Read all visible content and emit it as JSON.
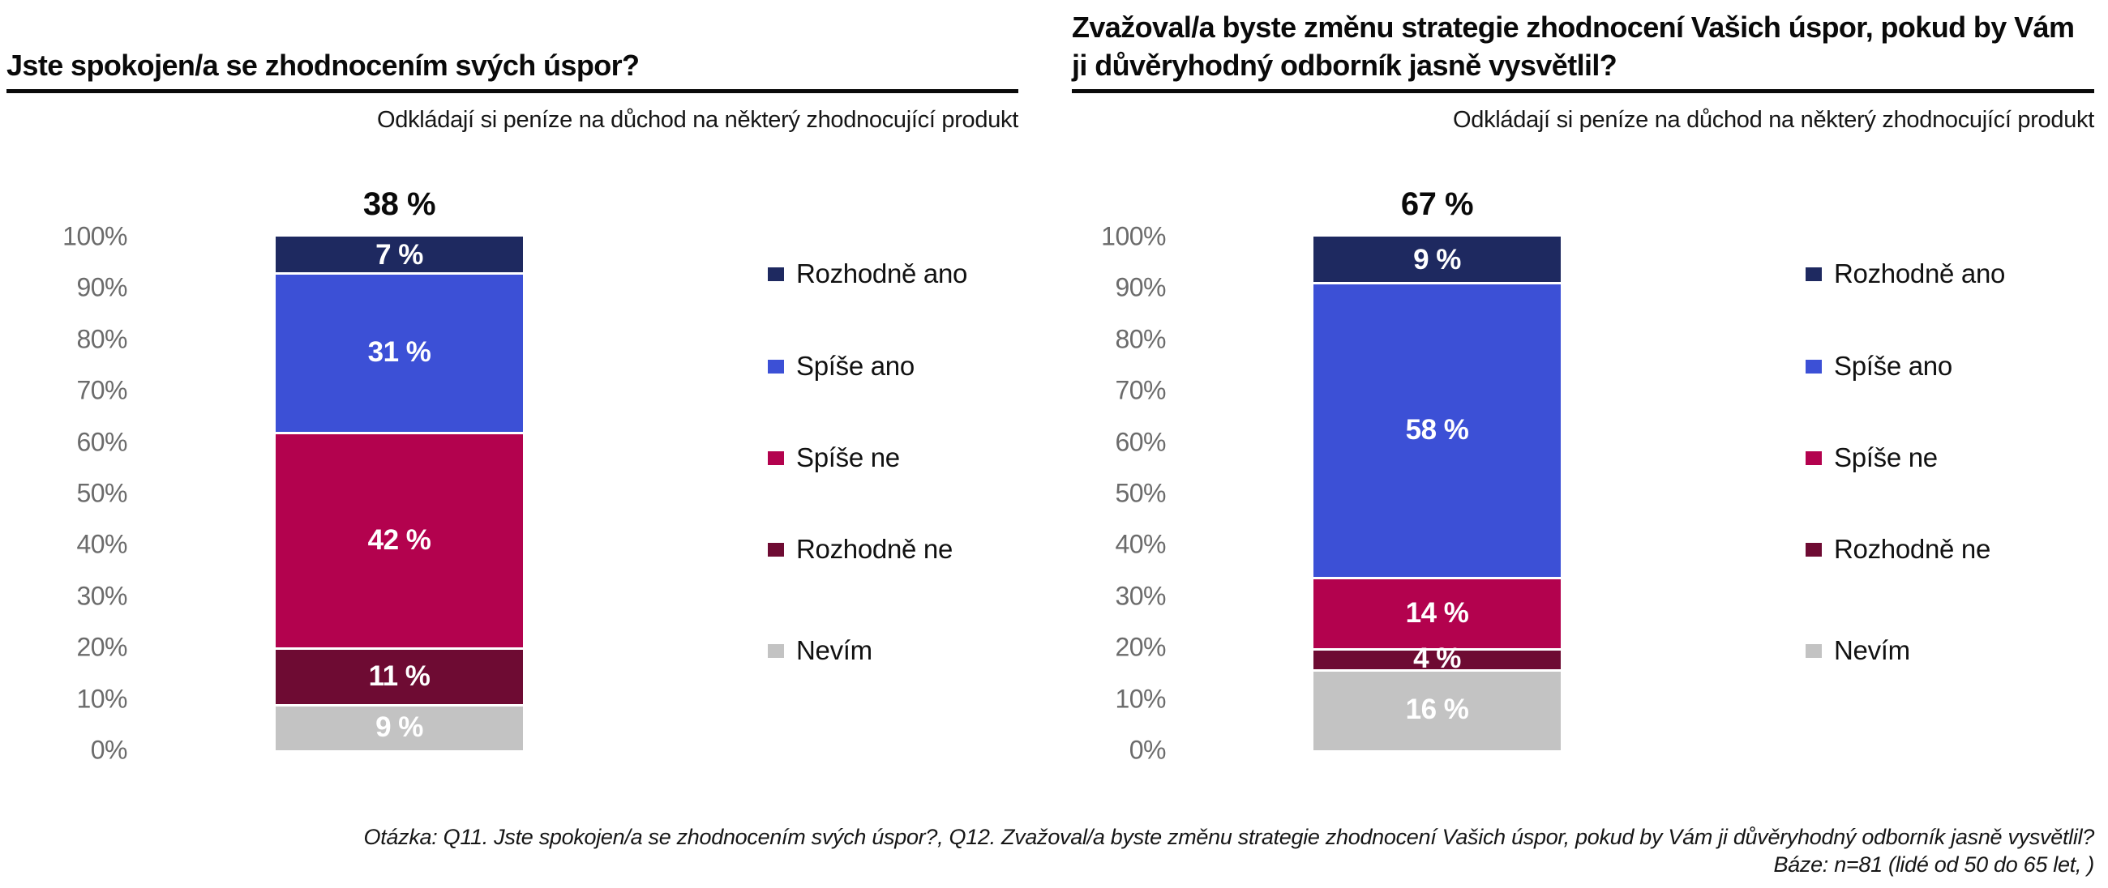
{
  "colors": {
    "series": [
      "#1e2960",
      "#3c50d6",
      "#b3024e",
      "#6e0b33",
      "#c3c3c3"
    ],
    "axis_label": "#6b6b6b",
    "title_text": "#0a0a0a",
    "bar_value_text": "#ffffff"
  },
  "legend": [
    "Rozhodně ano",
    "Spíše ano",
    "Spíše ne",
    "Rozhodně ne",
    "Nevím"
  ],
  "y_axis": [
    "100%",
    "90%",
    "80%",
    "70%",
    "60%",
    "50%",
    "40%",
    "30%",
    "20%",
    "10%",
    "0%"
  ],
  "charts": [
    {
      "title": "Jste spokojen/a se zhodnocením svých úspor?",
      "subtitle": "Odkládají si peníze na důchod na některý zhodnocující produkt",
      "total_label": "38 %",
      "segments": [
        {
          "name": "Rozhodně ano",
          "value": 7,
          "label": "7 %"
        },
        {
          "name": "Spíše ano",
          "value": 31,
          "label": "31 %"
        },
        {
          "name": "Spíše ne",
          "value": 42,
          "label": "42 %"
        },
        {
          "name": "Rozhodně ne",
          "value": 11,
          "label": "11 %"
        },
        {
          "name": "Nevím",
          "value": 9,
          "label": "9 %"
        }
      ]
    },
    {
      "title": "Zvažoval/a byste změnu strategie zhodnocení Vašich úspor, pokud by Vám ji důvěryhodný odborník jasně vysvětlil?",
      "subtitle": "Odkládají si peníze na důchod na některý zhodnocující produkt",
      "total_label": "67 %",
      "segments": [
        {
          "name": "Rozhodně ano",
          "value": 9,
          "label": "9 %"
        },
        {
          "name": "Spíše ano",
          "value": 58,
          "label": "58 %"
        },
        {
          "name": "Spíše ne",
          "value": 14,
          "label": "14 %"
        },
        {
          "name": "Rozhodně ne",
          "value": 4,
          "label": "4 %"
        },
        {
          "name": "Nevím",
          "value": 16,
          "label": "16 %"
        }
      ]
    }
  ],
  "footnote": {
    "line1": "Otázka: Q11. Jste spokojen/a se zhodnocením svých úspor?, Q12. Zvažoval/a byste změnu strategie zhodnocení Vašich úspor, pokud by Vám ji důvěryhodný odborník jasně vysvětlil?",
    "line2": "Báze: n=81 (lidé od 50 do 65 let, )"
  },
  "chart_data": [
    {
      "type": "bar",
      "stacked": true,
      "orientation": "vertical",
      "title": "Jste spokojen/a se zhodnocením svých úspor?",
      "subtitle": "Odkládají si peníze na důchod na některý zhodnocující produkt",
      "categories": [
        "Odkládají si peníze na důchod na některý zhodnocující produkt"
      ],
      "series": [
        {
          "name": "Rozhodně ano",
          "values": [
            7
          ],
          "color": "#1e2960"
        },
        {
          "name": "Spíše ano",
          "values": [
            31
          ],
          "color": "#3c50d6"
        },
        {
          "name": "Spíše ne",
          "values": [
            42
          ],
          "color": "#b3024e"
        },
        {
          "name": "Rozhodně ne",
          "values": [
            11
          ],
          "color": "#6e0b33"
        },
        {
          "name": "Nevím",
          "values": [
            9
          ],
          "color": "#c3c3c3"
        }
      ],
      "total_label": "38 %",
      "ylim": [
        0,
        100
      ],
      "y_ticks": [
        "0%",
        "10%",
        "20%",
        "30%",
        "40%",
        "50%",
        "60%",
        "70%",
        "80%",
        "90%",
        "100%"
      ],
      "grid": false,
      "legend_position": "right"
    },
    {
      "type": "bar",
      "stacked": true,
      "orientation": "vertical",
      "title": "Zvažoval/a byste změnu strategie zhodnocení Vašich úspor, pokud by Vám ji důvěryhodný odborník jasně vysvětlil?",
      "subtitle": "Odkládají si peníze na důchod na některý zhodnocující produkt",
      "categories": [
        "Odkládají si peníze na důchod na některý zhodnocující produkt"
      ],
      "series": [
        {
          "name": "Rozhodně ano",
          "values": [
            9
          ],
          "color": "#1e2960"
        },
        {
          "name": "Spíše ano",
          "values": [
            58
          ],
          "color": "#3c50d6"
        },
        {
          "name": "Spíše ne",
          "values": [
            14
          ],
          "color": "#b3024e"
        },
        {
          "name": "Rozhodně ne",
          "values": [
            4
          ],
          "color": "#6e0b33"
        },
        {
          "name": "Nevím",
          "values": [
            16
          ],
          "color": "#c3c3c3"
        }
      ],
      "total_label": "67 %",
      "ylim": [
        0,
        100
      ],
      "y_ticks": [
        "0%",
        "10%",
        "20%",
        "30%",
        "40%",
        "50%",
        "60%",
        "70%",
        "80%",
        "90%",
        "100%"
      ],
      "grid": false,
      "legend_position": "right"
    }
  ]
}
